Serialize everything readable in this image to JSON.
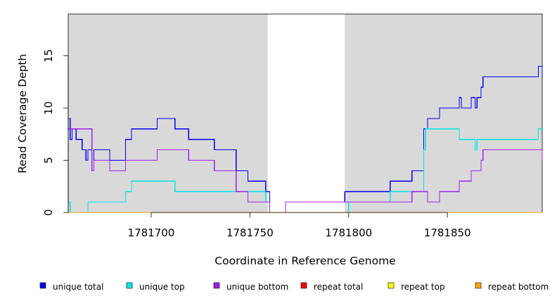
{
  "chart_data": {
    "type": "line",
    "xlabel": "Coordinate in Reference Genome",
    "ylabel": "Read Coverage Depth",
    "xlim": [
      1781658,
      1781898
    ],
    "ylim": [
      0,
      19
    ],
    "x_ticks": [
      1781700,
      1781750,
      1781800,
      1781850
    ],
    "x_tick_labels": [
      "1781700",
      "1781750",
      "1781800",
      "1781850"
    ],
    "y_ticks": [
      0,
      5,
      10,
      15
    ],
    "y_tick_labels": [
      "0",
      "5",
      "10",
      "15"
    ],
    "shaded_regions": [
      [
        1781658,
        1781759
      ],
      [
        1781798,
        1781898
      ]
    ],
    "shade_color": "#d9d9d9",
    "legend_position": "bottom",
    "series": [
      {
        "name": "unique total",
        "color": "#0000ee",
        "points": [
          [
            1781658,
            9
          ],
          [
            1781659,
            7
          ],
          [
            1781660,
            8
          ],
          [
            1781662,
            7
          ],
          [
            1781665,
            6
          ],
          [
            1781667,
            5
          ],
          [
            1781668,
            6
          ],
          [
            1781670,
            4
          ],
          [
            1781671,
            6
          ],
          [
            1781679,
            5
          ],
          [
            1781687,
            7
          ],
          [
            1781690,
            8
          ],
          [
            1781703,
            9
          ],
          [
            1781712,
            8
          ],
          [
            1781719,
            7
          ],
          [
            1781732,
            6
          ],
          [
            1781743,
            4
          ],
          [
            1781749,
            3
          ],
          [
            1781758,
            2
          ],
          [
            1781760,
            0
          ],
          [
            1781768,
            1
          ],
          [
            1781798,
            2
          ],
          [
            1781821,
            3
          ],
          [
            1781832,
            4
          ],
          [
            1781838,
            8
          ],
          [
            1781840,
            9
          ],
          [
            1781846,
            10
          ],
          [
            1781856,
            11
          ],
          [
            1781857,
            10
          ],
          [
            1781862,
            11
          ],
          [
            1781864,
            10
          ],
          [
            1781865,
            11
          ],
          [
            1781867,
            12
          ],
          [
            1781868,
            13
          ],
          [
            1781896,
            14
          ],
          [
            1781898,
            13
          ]
        ]
      },
      {
        "name": "unique top",
        "color": "#00e5e5",
        "points": [
          [
            1781658,
            1
          ],
          [
            1781659,
            0
          ],
          [
            1781668,
            1
          ],
          [
            1781687,
            2
          ],
          [
            1781690,
            3
          ],
          [
            1781712,
            2
          ],
          [
            1781743,
            2
          ],
          [
            1781758,
            1
          ],
          [
            1781760,
            0
          ],
          [
            1781798,
            0
          ],
          [
            1781800,
            1
          ],
          [
            1781821,
            2
          ],
          [
            1781838,
            6
          ],
          [
            1781839,
            8
          ],
          [
            1781856,
            7
          ],
          [
            1781864,
            6
          ],
          [
            1781865,
            7
          ],
          [
            1781896,
            8
          ],
          [
            1781898,
            8
          ]
        ]
      },
      {
        "name": "unique bottom",
        "color": "#a020f0",
        "points": [
          [
            1781658,
            8
          ],
          [
            1781670,
            4
          ],
          [
            1781671,
            5
          ],
          [
            1781679,
            4
          ],
          [
            1781687,
            5
          ],
          [
            1781703,
            6
          ],
          [
            1781719,
            5
          ],
          [
            1781732,
            4
          ],
          [
            1781743,
            2
          ],
          [
            1781749,
            1
          ],
          [
            1781758,
            1
          ],
          [
            1781760,
            0
          ],
          [
            1781768,
            1
          ],
          [
            1781798,
            1
          ],
          [
            1781832,
            2
          ],
          [
            1781840,
            1
          ],
          [
            1781846,
            2
          ],
          [
            1781856,
            3
          ],
          [
            1781862,
            4
          ],
          [
            1781867,
            5
          ],
          [
            1781868,
            6
          ],
          [
            1781896,
            6
          ],
          [
            1781898,
            5
          ]
        ]
      },
      {
        "name": "repeat total",
        "color": "#ff0000",
        "points": [
          [
            1781658,
            0
          ],
          [
            1781898,
            0
          ]
        ]
      },
      {
        "name": "repeat top",
        "color": "#ffff00",
        "points": [
          [
            1781658,
            0
          ],
          [
            1781898,
            0
          ]
        ]
      },
      {
        "name": "repeat bottom",
        "color": "#ffa500",
        "points": [
          [
            1781658,
            0
          ],
          [
            1781898,
            0
          ]
        ]
      }
    ]
  }
}
